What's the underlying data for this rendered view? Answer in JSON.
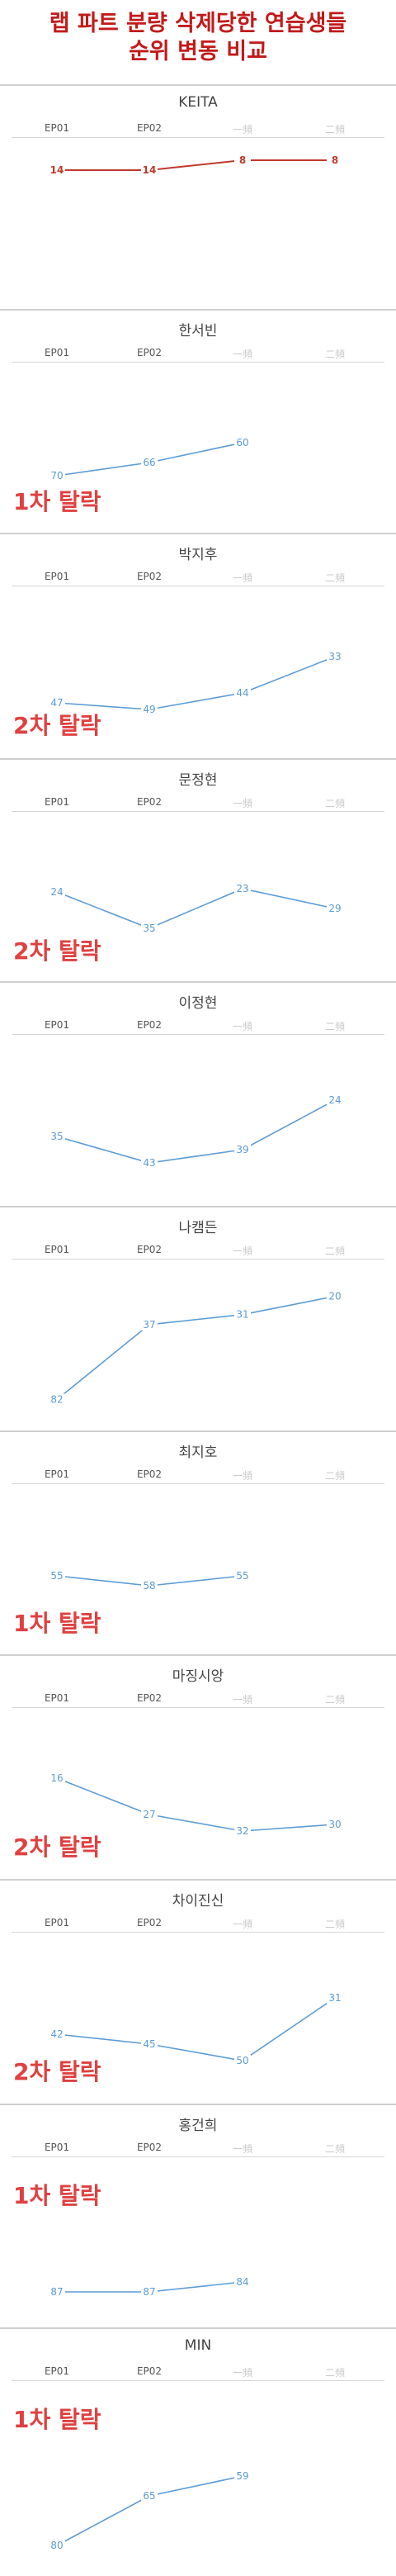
{
  "title": {
    "line1": "랩 파트 분량 삭제당한 연습생들",
    "line2": "순위 변동 비교"
  },
  "columns": [
    "EP01",
    "EP02",
    "一頻",
    "二頻"
  ],
  "colors": {
    "title": "#c21a1a",
    "series_blue": "#5b9bd5",
    "series_red": "#c0392b",
    "elimination": "#e04040"
  },
  "chart_data": [
    {
      "type": "line",
      "title": "KEITA",
      "categories": [
        "EP01",
        "EP02",
        "一頻",
        "二頻"
      ],
      "values": [
        14,
        14,
        8,
        8
      ],
      "y_orientation": "rank (1 at top)",
      "color": "#c0392b",
      "elimination": ""
    },
    {
      "type": "line",
      "title": "한서빈",
      "categories": [
        "EP01",
        "EP02",
        "一頻",
        "二頻"
      ],
      "values": [
        70,
        66,
        60,
        null
      ],
      "color": "#5b9bd5",
      "elimination": "1차 탈락"
    },
    {
      "type": "line",
      "title": "박지후",
      "categories": [
        "EP01",
        "EP02",
        "一頻",
        "二頻"
      ],
      "values": [
        47,
        49,
        44,
        33
      ],
      "color": "#5b9bd5",
      "elimination": "2차 탈락"
    },
    {
      "type": "line",
      "title": "문정현",
      "categories": [
        "EP01",
        "EP02",
        "一頻",
        "二頻"
      ],
      "values": [
        24,
        35,
        23,
        29
      ],
      "color": "#5b9bd5",
      "elimination": "2차 탈락"
    },
    {
      "type": "line",
      "title": "이정현",
      "categories": [
        "EP01",
        "EP02",
        "一頻",
        "二頻"
      ],
      "values": [
        35,
        43,
        39,
        24
      ],
      "color": "#5b9bd5",
      "elimination": ""
    },
    {
      "type": "line",
      "title": "나캠든",
      "categories": [
        "EP01",
        "EP02",
        "一頻",
        "二頻"
      ],
      "values": [
        82,
        37,
        31,
        20
      ],
      "color": "#5b9bd5",
      "elimination": ""
    },
    {
      "type": "line",
      "title": "최지호",
      "categories": [
        "EP01",
        "EP02",
        "一頻",
        "二頻"
      ],
      "values": [
        55,
        58,
        55,
        null
      ],
      "color": "#5b9bd5",
      "elimination": "1차 탈락"
    },
    {
      "type": "line",
      "title": "마징시앙",
      "categories": [
        "EP01",
        "EP02",
        "一頻",
        "二頻"
      ],
      "values": [
        16,
        27,
        32,
        30
      ],
      "color": "#5b9bd5",
      "elimination": "2차 탈락"
    },
    {
      "type": "line",
      "title": "차이진신",
      "categories": [
        "EP01",
        "EP02",
        "一頻",
        "二頻"
      ],
      "values": [
        42,
        45,
        50,
        31
      ],
      "color": "#5b9bd5",
      "elimination": "2차 탈락"
    },
    {
      "type": "line",
      "title": "홍건희",
      "categories": [
        "EP01",
        "EP02",
        "一頻",
        "二頻"
      ],
      "values": [
        87,
        87,
        84,
        null
      ],
      "color": "#5b9bd5",
      "elimination": "1차 탈락"
    },
    {
      "type": "line",
      "title": "MIN",
      "categories": [
        "EP01",
        "EP02",
        "一頻",
        "二頻"
      ],
      "values": [
        80,
        65,
        59,
        null
      ],
      "color": "#5b9bd5",
      "elimination": "1차 탈락"
    }
  ]
}
